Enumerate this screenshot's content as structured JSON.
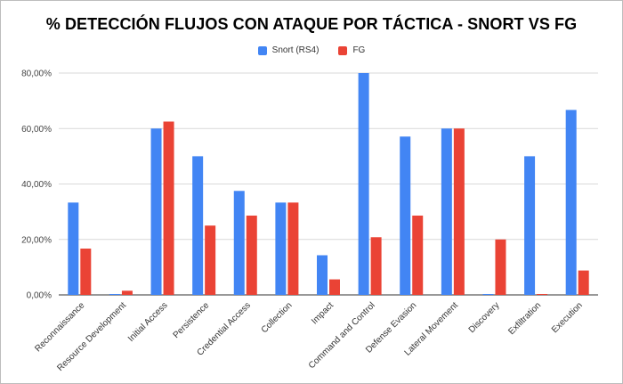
{
  "chart_data": {
    "type": "bar",
    "title": "% DETECCIÓN FLUJOS CON ATAQUE POR TÁCTICA - SNORT VS FG",
    "legend_position": "top",
    "grid": true,
    "ylim": [
      0,
      80
    ],
    "yticks": [
      "0,00%",
      "20,00%",
      "40,00%",
      "60,00%",
      "80,00%"
    ],
    "ytick_values": [
      0,
      20,
      40,
      60,
      80
    ],
    "categories": [
      "Reconnaissance",
      "Resource Development",
      "Initial Access",
      "Persistence",
      "Credential Access",
      "Collection",
      "Impact",
      "Command and Control",
      "Defense Evasion",
      "Lateral Movement",
      "Discovery",
      "Exfiltration",
      "Execution"
    ],
    "series": [
      {
        "name": "Snort (RS4)",
        "color": "#4285f4",
        "values": [
          33.3,
          0,
          60,
          50,
          37.5,
          33.3,
          14.3,
          80,
          57.1,
          60,
          0,
          50,
          66.7
        ]
      },
      {
        "name": "FG",
        "color": "#ea4335",
        "values": [
          16.7,
          1.5,
          62.5,
          25,
          28.6,
          33.3,
          5.6,
          20.8,
          28.6,
          60,
          20,
          0,
          8.8
        ]
      }
    ]
  }
}
